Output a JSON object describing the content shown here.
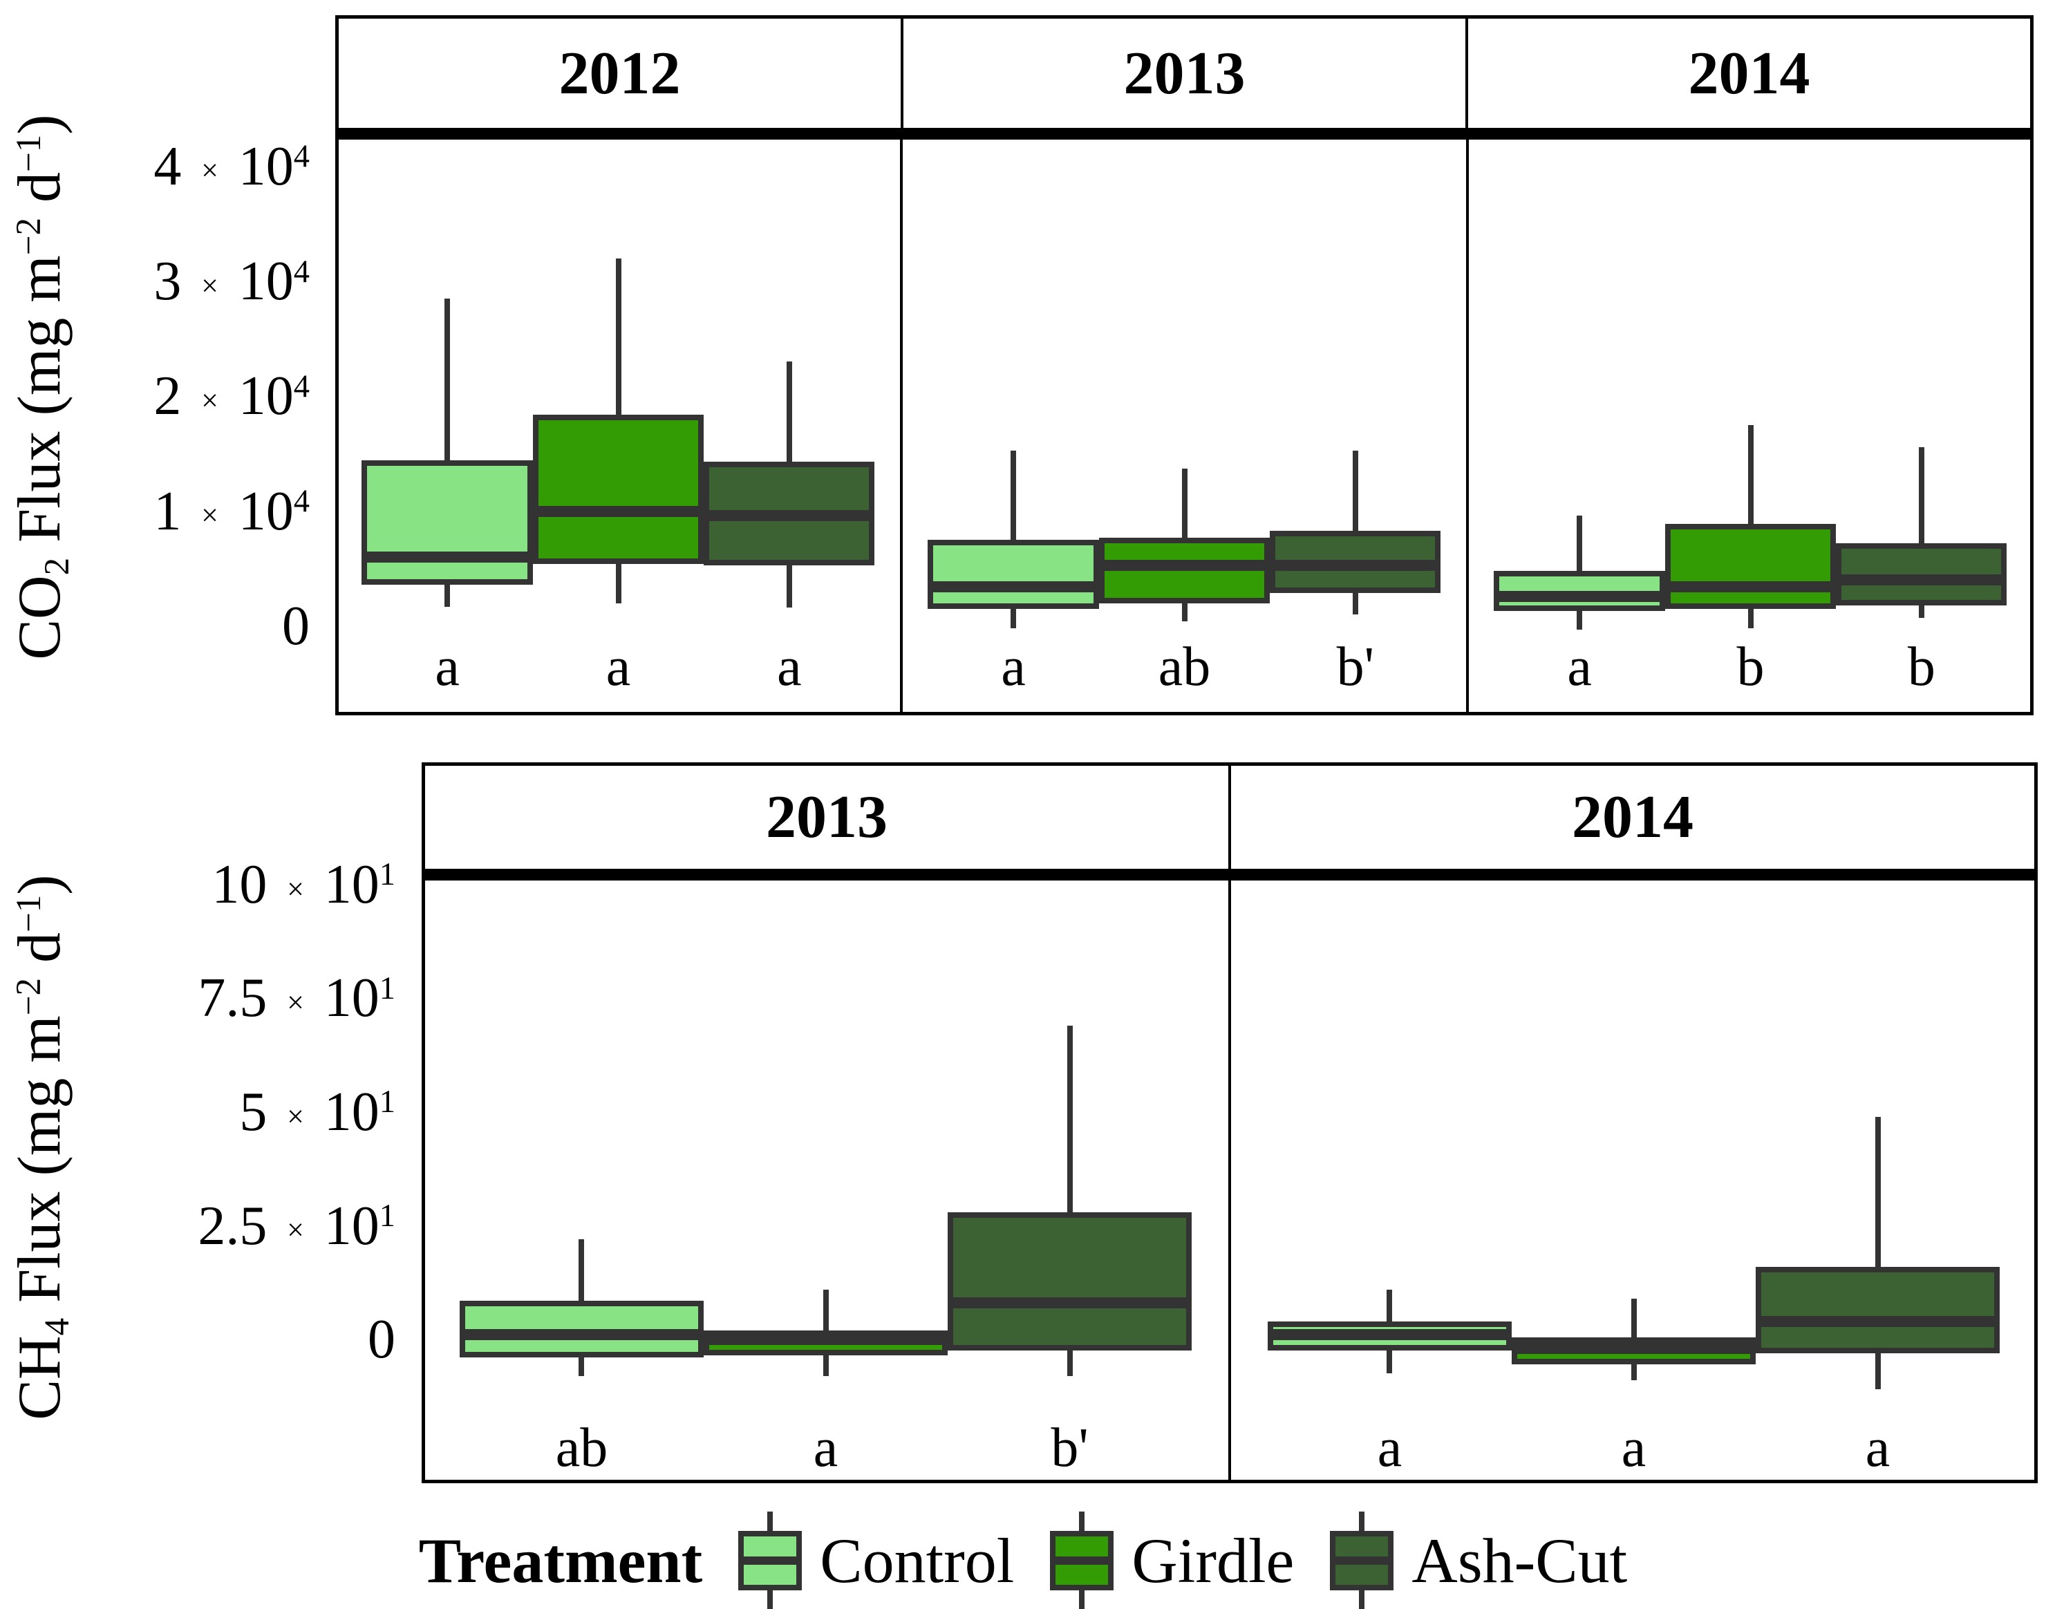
{
  "colors": {
    "control": "#87E383",
    "girdle": "#339C05",
    "ash_cut": "#3C6233",
    "box_stroke": "#333333",
    "panel_border": "#000000",
    "background": "#FFFFFF",
    "text": "#000000"
  },
  "legend": {
    "title": "Treatment",
    "items": [
      {
        "key": "control",
        "label": "Control"
      },
      {
        "key": "girdle",
        "label": "Girdle"
      },
      {
        "key": "ash_cut",
        "label": "Ash-Cut"
      }
    ]
  },
  "chart_data": [
    {
      "type": "boxplot",
      "id": "co2",
      "ylabel": "CO_{2} Flux (mg m^{−2} d^{−1})",
      "ylim": [
        -7760,
        42330
      ],
      "grid": false,
      "legend_position": "bottom",
      "yticks": [
        {
          "value": 40000,
          "label": "4 × 10^{4}"
        },
        {
          "value": 30000,
          "label": "3 × 10^{4}"
        },
        {
          "value": 20000,
          "label": "2 × 10^{4}"
        },
        {
          "value": 10000,
          "label": "1 × 10^{4}"
        },
        {
          "value": 0,
          "label": "0"
        }
      ],
      "facets": [
        {
          "label": "2012",
          "groups": [
            {
              "treatment": "control",
              "letter": "a",
              "whisker_low": 1700,
              "q1": 3600,
              "median": 6000,
              "q3": 14400,
              "whisker_high": 28500
            },
            {
              "treatment": "girdle",
              "letter": "a",
              "whisker_low": 2000,
              "q1": 5400,
              "median": 10000,
              "q3": 18400,
              "whisker_high": 32000
            },
            {
              "treatment": "ash_cut",
              "letter": "a",
              "whisker_low": 1600,
              "q1": 5300,
              "median": 9600,
              "q3": 14300,
              "whisker_high": 23000
            }
          ]
        },
        {
          "label": "2013",
          "groups": [
            {
              "treatment": "control",
              "letter": "a",
              "whisker_low": -200,
              "q1": 1500,
              "median": 3400,
              "q3": 7500,
              "whisker_high": 15300
            },
            {
              "treatment": "girdle",
              "letter": "ab",
              "whisker_low": 400,
              "q1": 2000,
              "median": 5300,
              "q3": 7700,
              "whisker_high": 13700
            },
            {
              "treatment": "ash_cut",
              "letter": "b'",
              "whisker_low": 1000,
              "q1": 2900,
              "median": 5300,
              "q3": 8300,
              "whisker_high": 15300
            }
          ]
        },
        {
          "label": "2014",
          "groups": [
            {
              "treatment": "control",
              "letter": "a",
              "whisker_low": -300,
              "q1": 1300,
              "median": 2600,
              "q3": 4800,
              "whisker_high": 9600
            },
            {
              "treatment": "girdle",
              "letter": "b",
              "whisker_low": -200,
              "q1": 1500,
              "median": 3400,
              "q3": 8900,
              "whisker_high": 17500
            },
            {
              "treatment": "ash_cut",
              "letter": "b",
              "whisker_low": 700,
              "q1": 1800,
              "median": 4000,
              "q3": 7200,
              "whisker_high": 15600
            }
          ]
        }
      ]
    },
    {
      "type": "boxplot",
      "id": "ch4",
      "ylabel": "CH_{4} Flux (mg m^{−2} d^{−1})",
      "ylim": [
        -31.6,
        100.9
      ],
      "grid": false,
      "legend_position": "bottom",
      "yticks": [
        {
          "value": 100,
          "label": "10 × 10^{1}"
        },
        {
          "value": 75,
          "label": "7.5 × 10^{1}"
        },
        {
          "value": 50,
          "label": "5 × 10^{1}"
        },
        {
          "value": 25,
          "label": "2.5 × 10^{1}"
        },
        {
          "value": 0,
          "label": "0"
        }
      ],
      "facets": [
        {
          "label": "2013",
          "groups": [
            {
              "treatment": "control",
              "letter": "ab",
              "whisker_low": -8,
              "q1": -4,
              "median": 1,
              "q3": 8.5,
              "whisker_high": 22
            },
            {
              "treatment": "girdle",
              "letter": "a",
              "whisker_low": -8,
              "q1": -3.5,
              "median": 0,
              "q3": 2,
              "whisker_high": 11
            },
            {
              "treatment": "ash_cut",
              "letter": "b'",
              "whisker_low": -8,
              "q1": -2.5,
              "median": 8,
              "q3": 28,
              "whisker_high": 69
            }
          ]
        },
        {
          "label": "2014",
          "groups": [
            {
              "treatment": "control",
              "letter": "a",
              "whisker_low": -7.5,
              "q1": -2.5,
              "median": 1,
              "q3": 4,
              "whisker_high": 11
            },
            {
              "treatment": "girdle",
              "letter": "a",
              "whisker_low": -9,
              "q1": -5.5,
              "median": -2,
              "q3": 0.5,
              "whisker_high": 9
            },
            {
              "treatment": "ash_cut",
              "letter": "a",
              "whisker_low": -11,
              "q1": -3,
              "median": 4,
              "q3": 16,
              "whisker_high": 49
            }
          ]
        }
      ]
    }
  ]
}
